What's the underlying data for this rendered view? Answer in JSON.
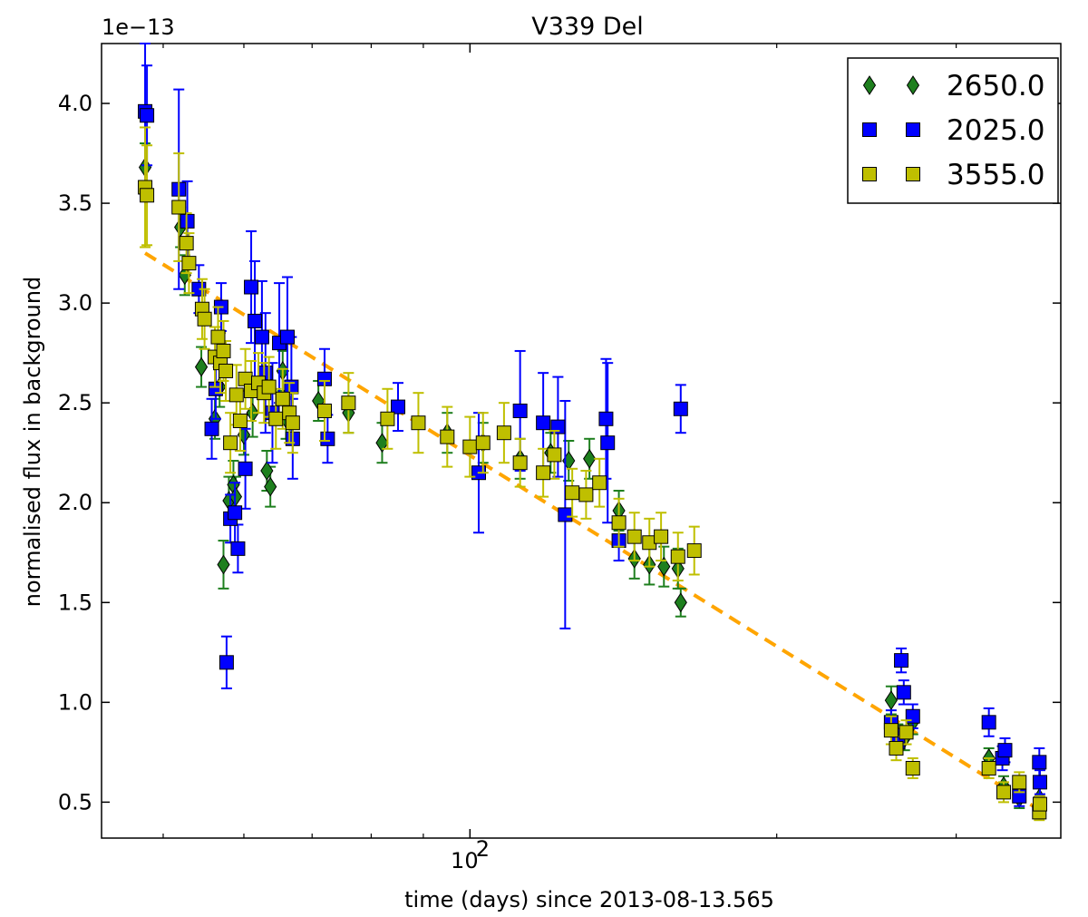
{
  "chart_data": {
    "type": "scatter",
    "title": "V339 Del",
    "xlabel": "time (days) since 2013-08-13.565",
    "ylabel": "normalised flux in background",
    "y_offset_label": "1e−13",
    "xscale": "log",
    "xlim": [
      43.5,
      380
    ],
    "ylim": [
      0.32,
      4.3
    ],
    "yticks": [
      0.5,
      1.0,
      1.5,
      2.0,
      2.5,
      3.0,
      3.5,
      4.0
    ],
    "ytick_labels": [
      "0.5",
      "1.0",
      "1.5",
      "2.0",
      "2.5",
      "3.0",
      "3.5",
      "4.0"
    ],
    "xtick_major": {
      "value": 100,
      "base": "10",
      "exp": "2"
    },
    "xticks_minor": [
      50,
      60,
      70,
      80,
      90,
      200,
      300
    ],
    "legend_position": "top-right",
    "colors": {
      "green": "#1e7f1e",
      "blue": "#0000ff",
      "yellow": "#bfbf00",
      "fit": "#ffa500"
    },
    "fit_line": {
      "x": [
        48,
        365
      ],
      "y": [
        3.25,
        0.45
      ],
      "style": "dashed"
    },
    "series": [
      {
        "name": "2650.0",
        "marker": "diamond",
        "color": "#1e7f1e",
        "points": [
          {
            "x": 48.0,
            "y": 3.68,
            "err": 0.12
          },
          {
            "x": 52.0,
            "y": 3.38,
            "err": 0.1
          },
          {
            "x": 52.5,
            "y": 3.14,
            "err": 0.1
          },
          {
            "x": 54.5,
            "y": 2.68,
            "err": 0.1
          },
          {
            "x": 56.2,
            "y": 2.42,
            "err": 0.1
          },
          {
            "x": 56.8,
            "y": 2.58,
            "err": 0.1
          },
          {
            "x": 57.3,
            "y": 1.69,
            "err": 0.12
          },
          {
            "x": 58.0,
            "y": 2.01,
            "err": 0.12
          },
          {
            "x": 58.6,
            "y": 2.09,
            "err": 0.12
          },
          {
            "x": 58.9,
            "y": 2.03,
            "err": 0.1
          },
          {
            "x": 60.0,
            "y": 2.34,
            "err": 0.1
          },
          {
            "x": 61.2,
            "y": 2.45,
            "err": 0.12
          },
          {
            "x": 63.2,
            "y": 2.16,
            "err": 0.1
          },
          {
            "x": 63.7,
            "y": 2.08,
            "err": 0.1
          },
          {
            "x": 65.5,
            "y": 2.66,
            "err": 0.1
          },
          {
            "x": 66.0,
            "y": 2.42,
            "err": 0.1
          },
          {
            "x": 71.0,
            "y": 2.51,
            "err": 0.1
          },
          {
            "x": 76.0,
            "y": 2.45,
            "err": 0.1
          },
          {
            "x": 82.0,
            "y": 2.3,
            "err": 0.1
          },
          {
            "x": 95.0,
            "y": 2.35,
            "err": 0.1
          },
          {
            "x": 103.0,
            "y": 2.3,
            "err": 0.1
          },
          {
            "x": 112.0,
            "y": 2.22,
            "err": 0.1
          },
          {
            "x": 120.0,
            "y": 2.25,
            "err": 0.1
          },
          {
            "x": 125.0,
            "y": 2.21,
            "err": 0.1
          },
          {
            "x": 131.0,
            "y": 2.22,
            "err": 0.1
          },
          {
            "x": 140.0,
            "y": 1.96,
            "err": 0.1
          },
          {
            "x": 145.0,
            "y": 1.72,
            "err": 0.1
          },
          {
            "x": 150.0,
            "y": 1.69,
            "err": 0.1
          },
          {
            "x": 155.0,
            "y": 1.68,
            "err": 0.1
          },
          {
            "x": 160.0,
            "y": 1.67,
            "err": 0.1
          },
          {
            "x": 161.0,
            "y": 1.5,
            "err": 0.07
          },
          {
            "x": 259.0,
            "y": 1.01,
            "err": 0.07
          },
          {
            "x": 263.0,
            "y": 0.83,
            "err": 0.06
          },
          {
            "x": 267.0,
            "y": 0.82,
            "err": 0.06
          },
          {
            "x": 272.0,
            "y": 0.9,
            "err": 0.06
          },
          {
            "x": 323.0,
            "y": 0.72,
            "err": 0.05
          },
          {
            "x": 334.0,
            "y": 0.58,
            "err": 0.05
          },
          {
            "x": 346.0,
            "y": 0.52,
            "err": 0.05
          },
          {
            "x": 362.0,
            "y": 0.52,
            "err": 0.05
          }
        ]
      },
      {
        "name": "2025.0",
        "marker": "square",
        "color": "#0000ff",
        "points": [
          {
            "x": 48.0,
            "y": 3.96,
            "err": 0.35
          },
          {
            "x": 48.2,
            "y": 3.94,
            "err": 0.25
          },
          {
            "x": 51.8,
            "y": 3.57,
            "err": 0.5
          },
          {
            "x": 52.8,
            "y": 3.41,
            "err": 0.2
          },
          {
            "x": 54.2,
            "y": 3.07,
            "err": 0.12
          },
          {
            "x": 55.8,
            "y": 2.37,
            "err": 0.15
          },
          {
            "x": 56.3,
            "y": 2.57,
            "err": 0.15
          },
          {
            "x": 57.0,
            "y": 2.98,
            "err": 0.12
          },
          {
            "x": 57.7,
            "y": 1.2,
            "err": 0.13
          },
          {
            "x": 58.2,
            "y": 1.92,
            "err": 0.12
          },
          {
            "x": 58.8,
            "y": 1.95,
            "err": 0.15
          },
          {
            "x": 59.2,
            "y": 1.77,
            "err": 0.12
          },
          {
            "x": 60.2,
            "y": 2.17,
            "err": 0.2
          },
          {
            "x": 61.0,
            "y": 3.08,
            "err": 0.28
          },
          {
            "x": 61.5,
            "y": 2.91,
            "err": 0.3
          },
          {
            "x": 62.5,
            "y": 2.83,
            "err": 0.28
          },
          {
            "x": 63.0,
            "y": 2.65,
            "err": 0.3
          },
          {
            "x": 64.0,
            "y": 2.45,
            "err": 0.25
          },
          {
            "x": 65.0,
            "y": 2.8,
            "err": 0.3
          },
          {
            "x": 66.2,
            "y": 2.83,
            "err": 0.3
          },
          {
            "x": 66.8,
            "y": 2.58,
            "err": 0.25
          },
          {
            "x": 67.0,
            "y": 2.32,
            "err": 0.2
          },
          {
            "x": 72.0,
            "y": 2.62,
            "err": 0.15
          },
          {
            "x": 72.5,
            "y": 2.32,
            "err": 0.12
          },
          {
            "x": 85.0,
            "y": 2.48,
            "err": 0.12
          },
          {
            "x": 102.0,
            "y": 2.15,
            "err": 0.3
          },
          {
            "x": 112.0,
            "y": 2.46,
            "err": 0.3
          },
          {
            "x": 118.0,
            "y": 2.4,
            "err": 0.25
          },
          {
            "x": 122.0,
            "y": 2.38,
            "err": 0.25
          },
          {
            "x": 124.0,
            "y": 1.94,
            "err": 0.57
          },
          {
            "x": 136.0,
            "y": 2.42,
            "err": 0.3
          },
          {
            "x": 136.5,
            "y": 2.3,
            "err": 0.4
          },
          {
            "x": 140.0,
            "y": 1.81,
            "err": 0.1
          },
          {
            "x": 161.0,
            "y": 2.47,
            "err": 0.12
          },
          {
            "x": 259.0,
            "y": 0.9,
            "err": 0.06
          },
          {
            "x": 263.0,
            "y": 0.8,
            "err": 0.06
          },
          {
            "x": 265.0,
            "y": 1.21,
            "err": 0.06
          },
          {
            "x": 266.5,
            "y": 1.05,
            "err": 0.06
          },
          {
            "x": 272.0,
            "y": 0.93,
            "err": 0.06
          },
          {
            "x": 323.0,
            "y": 0.9,
            "err": 0.07
          },
          {
            "x": 333.0,
            "y": 0.72,
            "err": 0.06
          },
          {
            "x": 335.0,
            "y": 0.76,
            "err": 0.06
          },
          {
            "x": 346.0,
            "y": 0.53,
            "err": 0.05
          },
          {
            "x": 362.0,
            "y": 0.7,
            "err": 0.07
          },
          {
            "x": 362.5,
            "y": 0.6,
            "err": 0.06
          }
        ]
      },
      {
        "name": "3555.0",
        "marker": "square",
        "color": "#bfbf00",
        "points": [
          {
            "x": 48.0,
            "y": 3.58,
            "err": 0.3
          },
          {
            "x": 48.2,
            "y": 3.54,
            "err": 0.25
          },
          {
            "x": 51.8,
            "y": 3.48,
            "err": 0.27
          },
          {
            "x": 52.7,
            "y": 3.3,
            "err": 0.15
          },
          {
            "x": 53.0,
            "y": 3.2,
            "err": 0.15
          },
          {
            "x": 54.6,
            "y": 2.97,
            "err": 0.15
          },
          {
            "x": 54.9,
            "y": 2.92,
            "err": 0.15
          },
          {
            "x": 56.2,
            "y": 2.73,
            "err": 0.15
          },
          {
            "x": 56.6,
            "y": 2.83,
            "err": 0.15
          },
          {
            "x": 56.9,
            "y": 2.7,
            "err": 0.15
          },
          {
            "x": 57.3,
            "y": 2.76,
            "err": 0.15
          },
          {
            "x": 57.6,
            "y": 2.66,
            "err": 0.15
          },
          {
            "x": 58.2,
            "y": 2.3,
            "err": 0.15
          },
          {
            "x": 59.0,
            "y": 2.54,
            "err": 0.15
          },
          {
            "x": 59.5,
            "y": 2.41,
            "err": 0.15
          },
          {
            "x": 60.2,
            "y": 2.62,
            "err": 0.15
          },
          {
            "x": 61.0,
            "y": 2.56,
            "err": 0.15
          },
          {
            "x": 62.0,
            "y": 2.6,
            "err": 0.15
          },
          {
            "x": 62.8,
            "y": 2.55,
            "err": 0.15
          },
          {
            "x": 63.5,
            "y": 2.58,
            "err": 0.15
          },
          {
            "x": 64.5,
            "y": 2.42,
            "err": 0.15
          },
          {
            "x": 65.5,
            "y": 2.52,
            "err": 0.15
          },
          {
            "x": 66.5,
            "y": 2.45,
            "err": 0.15
          },
          {
            "x": 67.0,
            "y": 2.4,
            "err": 0.15
          },
          {
            "x": 72.0,
            "y": 2.46,
            "err": 0.15
          },
          {
            "x": 76.0,
            "y": 2.5,
            "err": 0.15
          },
          {
            "x": 83.0,
            "y": 2.42,
            "err": 0.15
          },
          {
            "x": 89.0,
            "y": 2.4,
            "err": 0.15
          },
          {
            "x": 95.0,
            "y": 2.33,
            "err": 0.15
          },
          {
            "x": 100.0,
            "y": 2.28,
            "err": 0.15
          },
          {
            "x": 103.0,
            "y": 2.3,
            "err": 0.15
          },
          {
            "x": 108.0,
            "y": 2.35,
            "err": 0.15
          },
          {
            "x": 112.0,
            "y": 2.2,
            "err": 0.12
          },
          {
            "x": 118.0,
            "y": 2.15,
            "err": 0.12
          },
          {
            "x": 121.0,
            "y": 2.24,
            "err": 0.12
          },
          {
            "x": 126.0,
            "y": 2.05,
            "err": 0.12
          },
          {
            "x": 130.0,
            "y": 2.04,
            "err": 0.12
          },
          {
            "x": 134.0,
            "y": 2.1,
            "err": 0.12
          },
          {
            "x": 140.0,
            "y": 1.9,
            "err": 0.12
          },
          {
            "x": 145.0,
            "y": 1.83,
            "err": 0.12
          },
          {
            "x": 150.0,
            "y": 1.8,
            "err": 0.12
          },
          {
            "x": 154.0,
            "y": 1.83,
            "err": 0.12
          },
          {
            "x": 160.0,
            "y": 1.73,
            "err": 0.12
          },
          {
            "x": 166.0,
            "y": 1.76,
            "err": 0.12
          },
          {
            "x": 259.0,
            "y": 0.86,
            "err": 0.07
          },
          {
            "x": 262.0,
            "y": 0.77,
            "err": 0.06
          },
          {
            "x": 268.0,
            "y": 0.85,
            "err": 0.06
          },
          {
            "x": 272.0,
            "y": 0.67,
            "err": 0.05
          },
          {
            "x": 323.0,
            "y": 0.67,
            "err": 0.05
          },
          {
            "x": 334.0,
            "y": 0.55,
            "err": 0.05
          },
          {
            "x": 346.0,
            "y": 0.6,
            "err": 0.05
          },
          {
            "x": 362.0,
            "y": 0.45,
            "err": 0.04
          },
          {
            "x": 362.5,
            "y": 0.49,
            "err": 0.04
          }
        ]
      }
    ]
  }
}
